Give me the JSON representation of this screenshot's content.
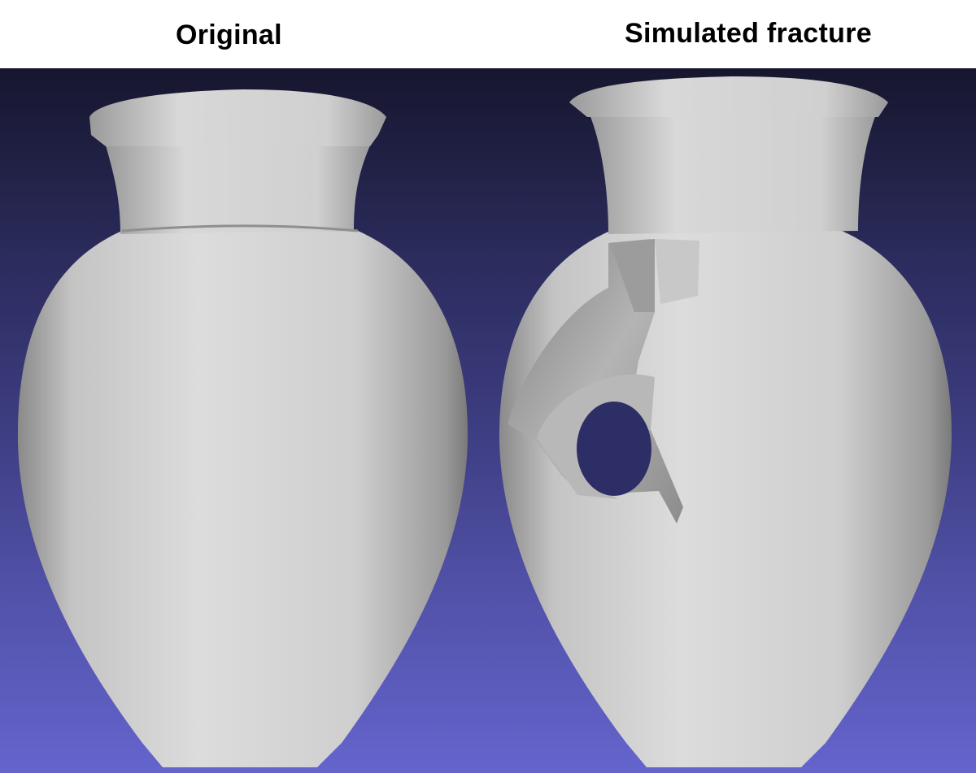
{
  "panels": {
    "left": {
      "title": "Original"
    },
    "right": {
      "title": "Simulated fracture"
    }
  },
  "colors": {
    "background_top": "#16162e",
    "background_bottom": "#6464cd",
    "vase_surface": "#d2d2d2",
    "vase_shadow": "#8a8a8a",
    "fracture_inner": "#a8a8a8"
  }
}
